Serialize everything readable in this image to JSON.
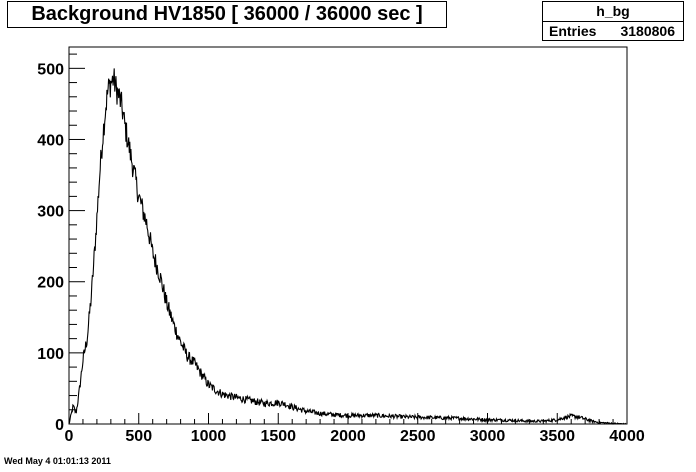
{
  "chart_data": {
    "type": "line",
    "title": "Background HV1850 [ 36000 / 36000 sec ]",
    "xlabel": "",
    "ylabel": "",
    "xlim": [
      0,
      4000
    ],
    "ylim": [
      0,
      530
    ],
    "x_ticks": [
      "0",
      "500",
      "1000",
      "1500",
      "2000",
      "2500",
      "3000",
      "3500",
      "4000"
    ],
    "y_ticks": [
      "0",
      "100",
      "200",
      "300",
      "400",
      "500"
    ],
    "grid": false,
    "legend": "none",
    "series": [
      {
        "x": [
          0,
          30,
          50,
          70,
          100,
          130,
          160,
          190,
          220,
          240,
          260,
          280,
          300,
          320,
          340,
          360,
          380,
          400,
          430,
          460,
          500,
          530,
          560,
          600,
          650,
          700,
          750,
          800,
          850,
          900,
          950,
          1000,
          1050,
          1100,
          1200,
          1300,
          1400,
          1500,
          1550,
          1600,
          1700,
          1800,
          1900,
          2000,
          2200,
          2400,
          2600,
          2800,
          3000,
          3200,
          3300,
          3400,
          3500,
          3550,
          3600,
          3650,
          3700,
          3750,
          3800,
          3900,
          4000
        ],
        "y": [
          0,
          25,
          15,
          40,
          90,
          120,
          180,
          260,
          350,
          400,
          440,
          470,
          480,
          485,
          470,
          460,
          445,
          420,
          390,
          360,
          320,
          300,
          280,
          240,
          210,
          170,
          140,
          115,
          95,
          85,
          70,
          55,
          48,
          42,
          37,
          33,
          29,
          30,
          28,
          24,
          18,
          15,
          13,
          12,
          12,
          10,
          9,
          8,
          6,
          5,
          4,
          4,
          6,
          9,
          11,
          10,
          7,
          4,
          2,
          1,
          0
        ]
      }
    ]
  },
  "stats": {
    "name": "h_bg",
    "entries_label": "Entries",
    "entries_value": "3180806"
  },
  "footer": {
    "date": "Wed May  4 01:01:13 2011"
  }
}
